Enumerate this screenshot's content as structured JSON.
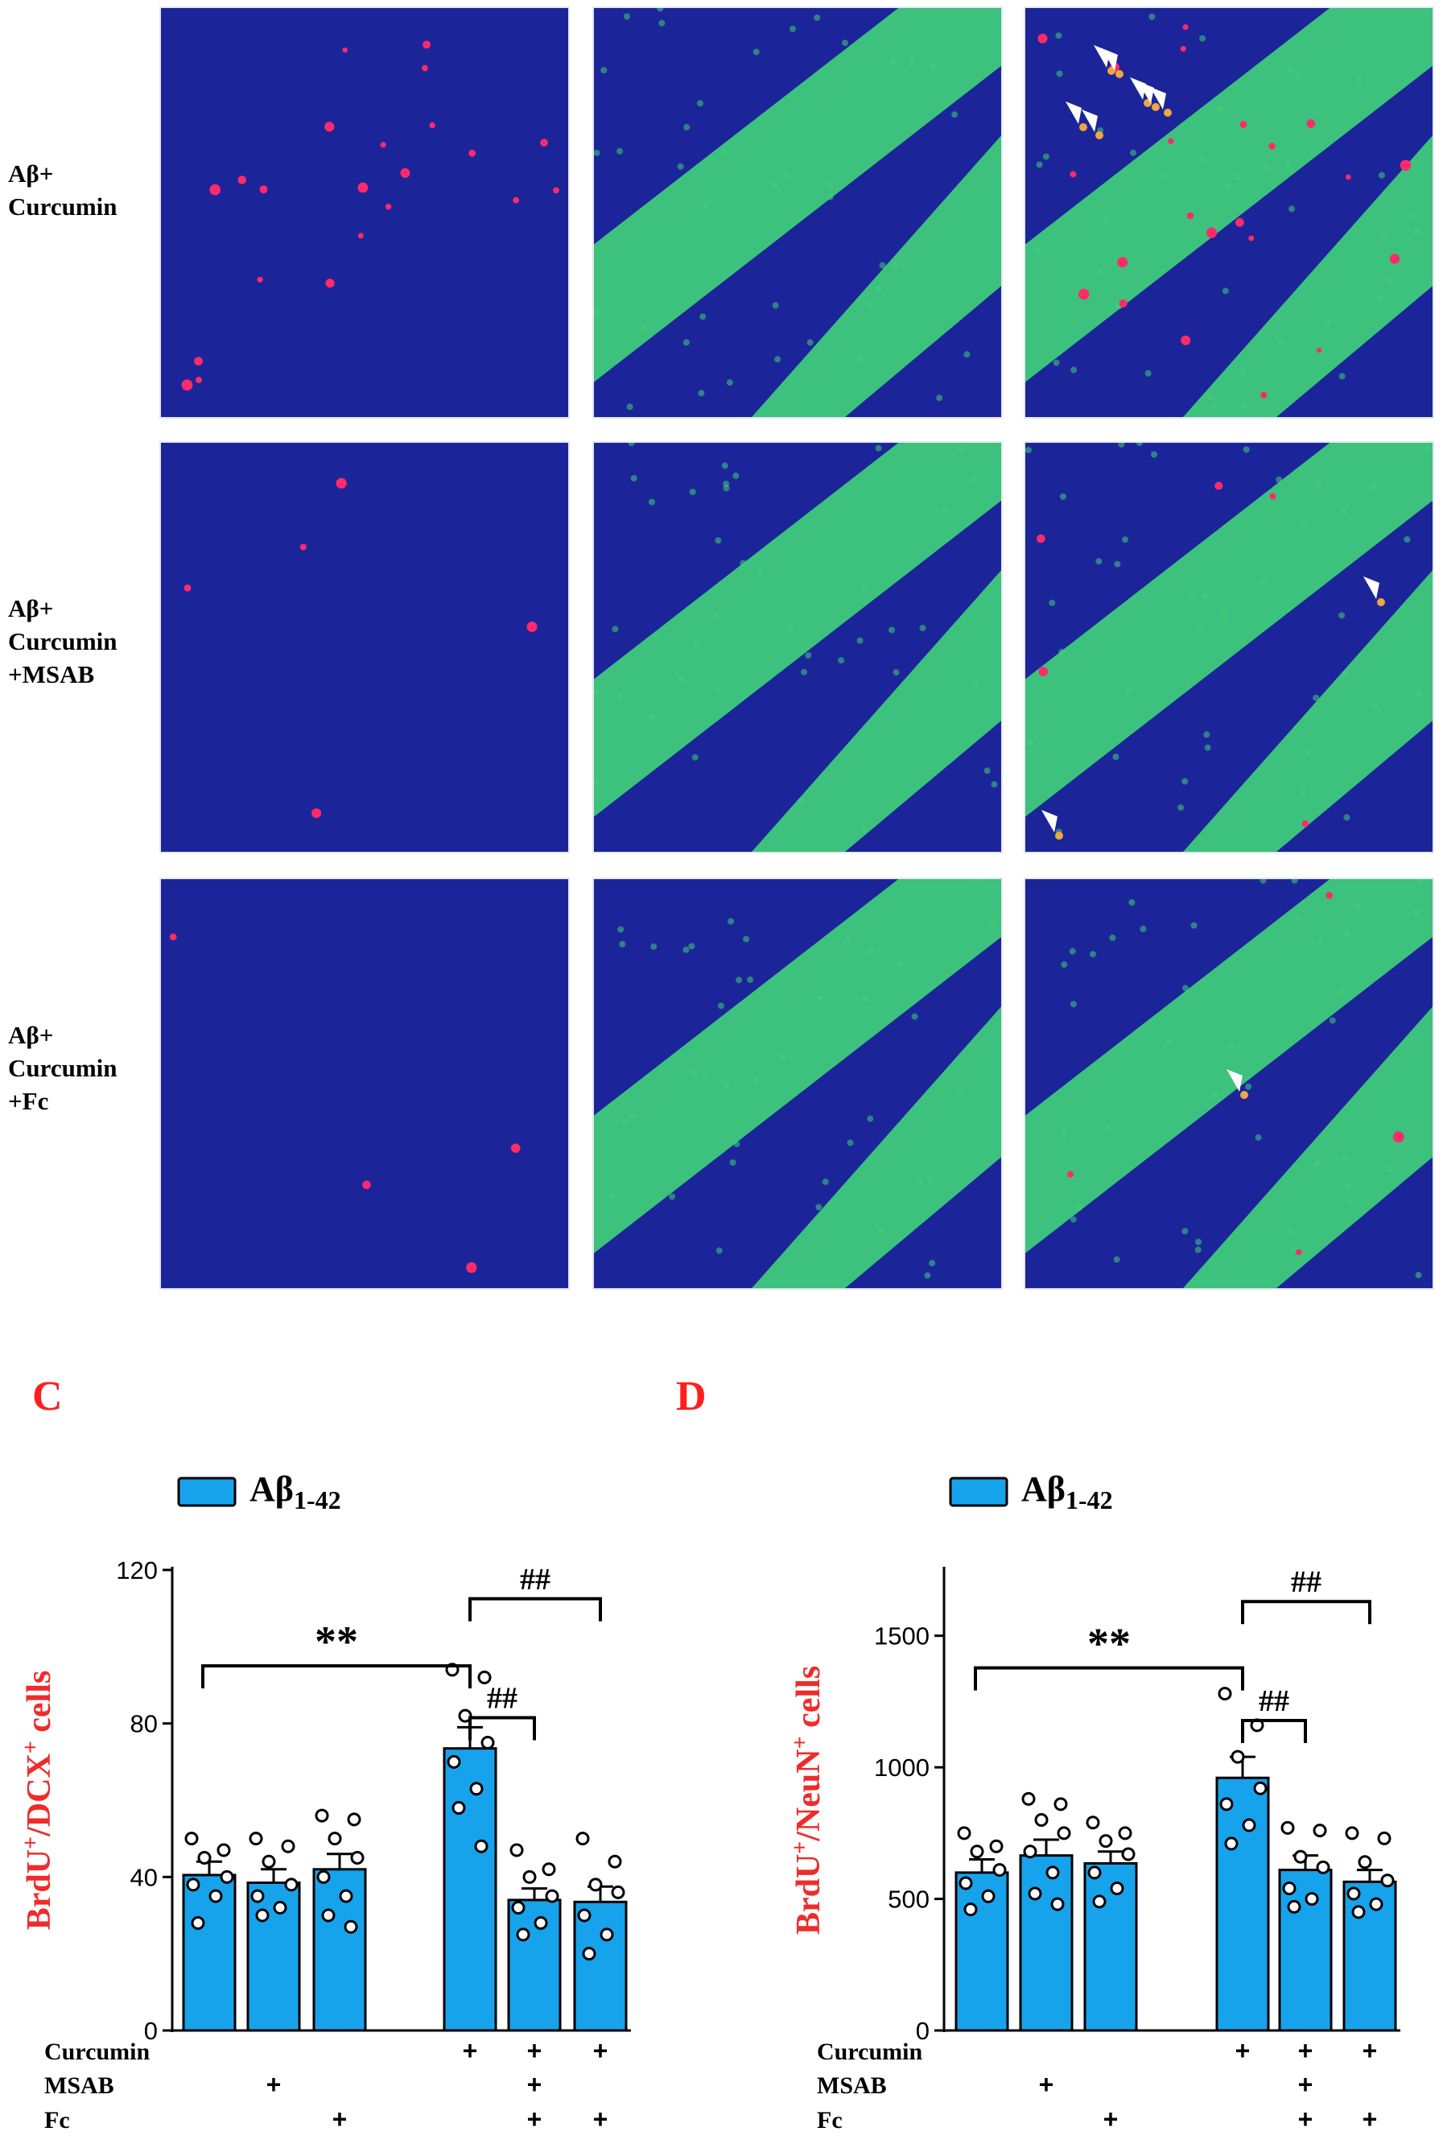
{
  "micrographs": {
    "rows": [
      {
        "label_lines": [
          "Aβ+",
          "Curcumin"
        ]
      },
      {
        "label_lines": [
          "Aβ+",
          "Curcumin",
          "+MSAB"
        ]
      },
      {
        "label_lines": [
          "Aβ+",
          "Curcumin",
          "+Fc"
        ]
      }
    ],
    "colors": {
      "background": "#1b2599",
      "granule_layer": "#3fcf7a",
      "brdu_cell": "#ff2a6a",
      "merged_cell": "#f0a640",
      "arrowhead": "#ffffff"
    }
  },
  "panels": {
    "c_letter": "C",
    "d_letter": "D"
  },
  "chart_data": [
    {
      "type": "bar",
      "panel": "C",
      "legend": {
        "label": "Aβ",
        "subscript": "1-42",
        "color": "#17a3ec",
        "placement": "top-left"
      },
      "ylabel_parts": [
        "BrdU",
        "+",
        "/DCX",
        "+",
        " cells"
      ],
      "ylim": [
        0,
        120
      ],
      "yticks": [
        0,
        40,
        80,
        120
      ],
      "bar_color": "#17a3ec",
      "groups": [
        {
          "value": 40.5,
          "error": 3.5,
          "curcumin": "",
          "msab": "",
          "fc": "",
          "points": [
            50,
            47,
            45,
            40,
            38,
            35,
            28
          ]
        },
        {
          "value": 38.5,
          "error": 3.5,
          "curcumin": "",
          "msab": "+",
          "fc": "",
          "points": [
            50,
            48,
            44,
            38,
            35,
            32,
            30
          ]
        },
        {
          "value": 42,
          "error": 4,
          "curcumin": "",
          "msab": "",
          "fc": "+",
          "points": [
            56,
            55,
            50,
            45,
            40,
            35,
            30,
            27
          ]
        },
        {
          "value": 73.5,
          "error": 5.5,
          "curcumin": "+",
          "msab": "",
          "fc": "",
          "points": [
            94,
            92,
            82,
            75,
            70,
            63,
            58,
            48
          ]
        },
        {
          "value": 34,
          "error": 3,
          "curcumin": "+",
          "msab": "+",
          "fc": "+",
          "points": [
            47,
            42,
            40,
            35,
            32,
            28,
            25
          ]
        },
        {
          "value": 33.5,
          "error": 4,
          "curcumin": "+",
          "msab": "",
          "fc": "+",
          "points": [
            50,
            44,
            38,
            36,
            30,
            25,
            20
          ]
        }
      ],
      "row_labels": [
        "Curcumin",
        "MSAB",
        "Fc"
      ],
      "annotations": [
        {
          "text": "**",
          "from": 0,
          "to": 3
        },
        {
          "text": "##",
          "from": 3,
          "to": 4
        },
        {
          "text": "##",
          "from": 3,
          "to": 5
        }
      ]
    },
    {
      "type": "bar",
      "panel": "D",
      "legend": {
        "label": "Aβ",
        "subscript": "1-42",
        "color": "#17a3ec",
        "placement": "top-left"
      },
      "ylabel_parts": [
        "BrdU",
        "+",
        "/NeuN",
        "+",
        " cells"
      ],
      "ylim": [
        0,
        1750
      ],
      "yticks": [
        0,
        500,
        1000,
        1500
      ],
      "bar_color": "#17a3ec",
      "groups": [
        {
          "value": 600,
          "error": 50,
          "curcumin": "",
          "msab": "",
          "fc": "",
          "points": [
            750,
            700,
            680,
            610,
            560,
            510,
            460
          ]
        },
        {
          "value": 665,
          "error": 60,
          "curcumin": "",
          "msab": "+",
          "fc": "",
          "points": [
            880,
            860,
            800,
            750,
            680,
            600,
            520,
            480
          ]
        },
        {
          "value": 635,
          "error": 45,
          "curcumin": "",
          "msab": "",
          "fc": "+",
          "points": [
            790,
            750,
            720,
            670,
            600,
            540,
            490
          ]
        },
        {
          "value": 960,
          "error": 80,
          "curcumin": "+",
          "msab": "",
          "fc": "",
          "points": [
            1280,
            1160,
            1040,
            920,
            860,
            780,
            710
          ]
        },
        {
          "value": 610,
          "error": 55,
          "curcumin": "+",
          "msab": "+",
          "fc": "+",
          "points": [
            770,
            760,
            660,
            620,
            540,
            500,
            470
          ]
        },
        {
          "value": 565,
          "error": 45,
          "curcumin": "+",
          "msab": "",
          "fc": "+",
          "points": [
            750,
            730,
            640,
            570,
            520,
            480,
            450
          ]
        }
      ],
      "row_labels": [
        "Curcumin",
        "MSAB",
        "Fc"
      ],
      "annotations": [
        {
          "text": "**",
          "from": 0,
          "to": 3
        },
        {
          "text": "##",
          "from": 3,
          "to": 4
        },
        {
          "text": "##",
          "from": 3,
          "to": 5
        }
      ]
    }
  ]
}
